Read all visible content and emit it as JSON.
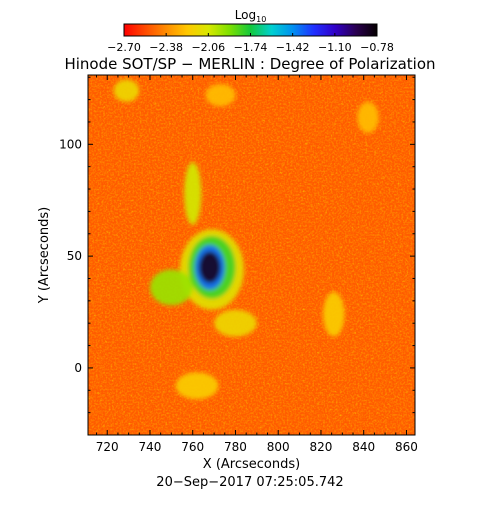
{
  "chart_data": {
    "type": "heatmap",
    "title": "Hinode SOT/SP − MERLIN : Degree of Polarization",
    "xlabel": "X (Arcseconds)",
    "ylabel": "Y (Arcseconds)",
    "timestamp": "20−Sep−2017 07:25:05.742",
    "xlim": [
      711,
      864
    ],
    "ylim": [
      -30,
      131
    ],
    "xticks": [
      720,
      740,
      760,
      780,
      800,
      820,
      840,
      860
    ],
    "yticks": [
      0,
      50,
      100
    ],
    "xtick_labels": [
      "720",
      "740",
      "760",
      "780",
      "800",
      "820",
      "840",
      "860"
    ],
    "ytick_labels": [
      "0",
      "50",
      "100"
    ],
    "colorbar": {
      "title": "Log",
      "title_subscript": "10",
      "range": [
        -2.7,
        -0.78
      ],
      "ticks": [
        -2.7,
        -2.38,
        -2.06,
        -1.74,
        -1.42,
        -1.1,
        -0.78
      ],
      "tick_labels": [
        "−2.70",
        "−2.38",
        "−2.06",
        "−1.74",
        "−1.42",
        "−1.10",
        "−0.78"
      ],
      "colormap": [
        "#ff0000",
        "#ff4a00",
        "#ff8c00",
        "#ffc800",
        "#d8e800",
        "#7ee000",
        "#14c83c",
        "#00d0d0",
        "#0090f0",
        "#2030ff",
        "#3000c8",
        "#2a0050",
        "#050000"
      ]
    },
    "background_value": -2.5,
    "features": [
      {
        "name": "sunspot-umbra",
        "cx": 768,
        "cy": 45,
        "rx": 5,
        "ry": 7,
        "value": -0.85
      },
      {
        "name": "sunspot-inner",
        "cx": 768,
        "cy": 45,
        "rx": 7,
        "ry": 10,
        "value": -1.35
      },
      {
        "name": "sunspot-penumbra",
        "cx": 769,
        "cy": 45,
        "rx": 11,
        "ry": 14,
        "value": -1.8
      },
      {
        "name": "plage-halo",
        "cx": 769,
        "cy": 44,
        "rx": 15,
        "ry": 18,
        "value": -2.1
      },
      {
        "name": "plage-west",
        "cx": 750,
        "cy": 36,
        "rx": 10,
        "ry": 8,
        "value": -1.95
      },
      {
        "name": "plage-north-arm",
        "cx": 760,
        "cy": 78,
        "rx": 4,
        "ry": 14,
        "value": -2.05
      },
      {
        "name": "plage-south",
        "cx": 780,
        "cy": 20,
        "rx": 10,
        "ry": 6,
        "value": -2.15
      },
      {
        "name": "plage-east-network",
        "cx": 826,
        "cy": 24,
        "rx": 5,
        "ry": 10,
        "value": -2.2
      },
      {
        "name": "plage-southwest",
        "cx": 762,
        "cy": -8,
        "rx": 10,
        "ry": 6,
        "value": -2.2
      },
      {
        "name": "plage-northwest",
        "cx": 729,
        "cy": 124,
        "rx": 6,
        "ry": 5,
        "value": -2.15
      },
      {
        "name": "network-east-top",
        "cx": 842,
        "cy": 112,
        "rx": 5,
        "ry": 7,
        "value": -2.25
      },
      {
        "name": "network-north",
        "cx": 773,
        "cy": 122,
        "rx": 7,
        "ry": 5,
        "value": -2.25
      }
    ]
  }
}
